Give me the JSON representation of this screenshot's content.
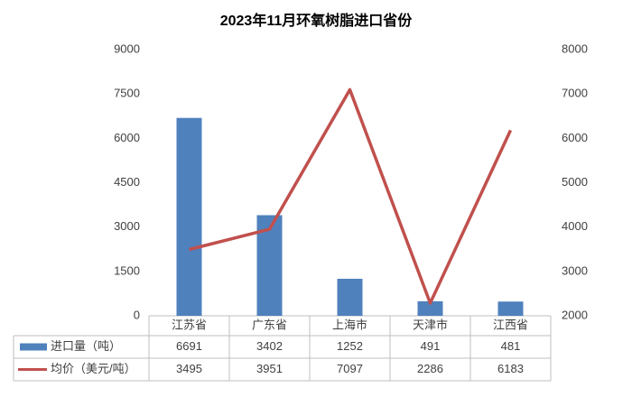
{
  "chart_data": {
    "type": "bar-line",
    "title": "2023年11月环氧树脂进口省份",
    "categories": [
      "江苏省",
      "广东省",
      "上海市",
      "天津市",
      "江西省"
    ],
    "series": [
      {
        "name": "进口量（吨）",
        "type": "bar",
        "color": "#4f81bd",
        "values": [
          6691,
          3402,
          1252,
          491,
          481
        ]
      },
      {
        "name": "均价（美元/吨）",
        "type": "line",
        "color": "#c0504d",
        "axis": "y2",
        "values": [
          3495,
          3951,
          7097,
          2286,
          6183
        ]
      }
    ],
    "ylim": [
      0,
      9000
    ],
    "yticks": [
      0,
      1500,
      3000,
      4500,
      6000,
      7500,
      9000
    ],
    "y2lim": [
      2000,
      8000
    ],
    "y2ticks": [
      2000,
      3000,
      4000,
      5000,
      6000,
      7000,
      8000
    ],
    "grid": false
  }
}
